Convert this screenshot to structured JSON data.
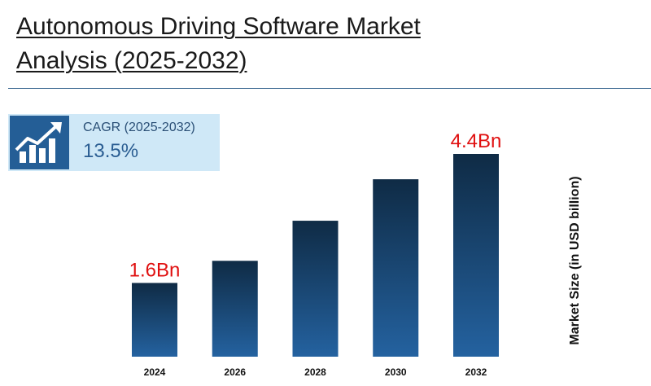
{
  "page": {
    "title_line1": "Autonomous Driving Software Market",
    "title_line2": "Analysis (2025-2032)"
  },
  "cagr": {
    "label": "CAGR (2025-2032)",
    "value": "13.5%",
    "icon": "growth-chart-icon"
  },
  "colors": {
    "bar_top": "#0f2b45",
    "bar_bottom": "#2462a0",
    "data_label": "#e01010",
    "rule": "#2f5f8a",
    "cagr_box": "#cfe8f7"
  },
  "chart_data": {
    "type": "bar",
    "categories": [
      "2024",
      "2026",
      "2028",
      "2030",
      "2032"
    ],
    "values": [
      1.6,
      2.08,
      2.95,
      3.85,
      4.4
    ],
    "ylabel": "Market Size (in USD billion)",
    "xlabel": "",
    "ylim": [
      0,
      4.4
    ],
    "data_labels": [
      {
        "index": 0,
        "text": "1.6Bn"
      },
      {
        "index": 4,
        "text": "4.4Bn"
      }
    ],
    "grid": false,
    "legend": "none"
  }
}
